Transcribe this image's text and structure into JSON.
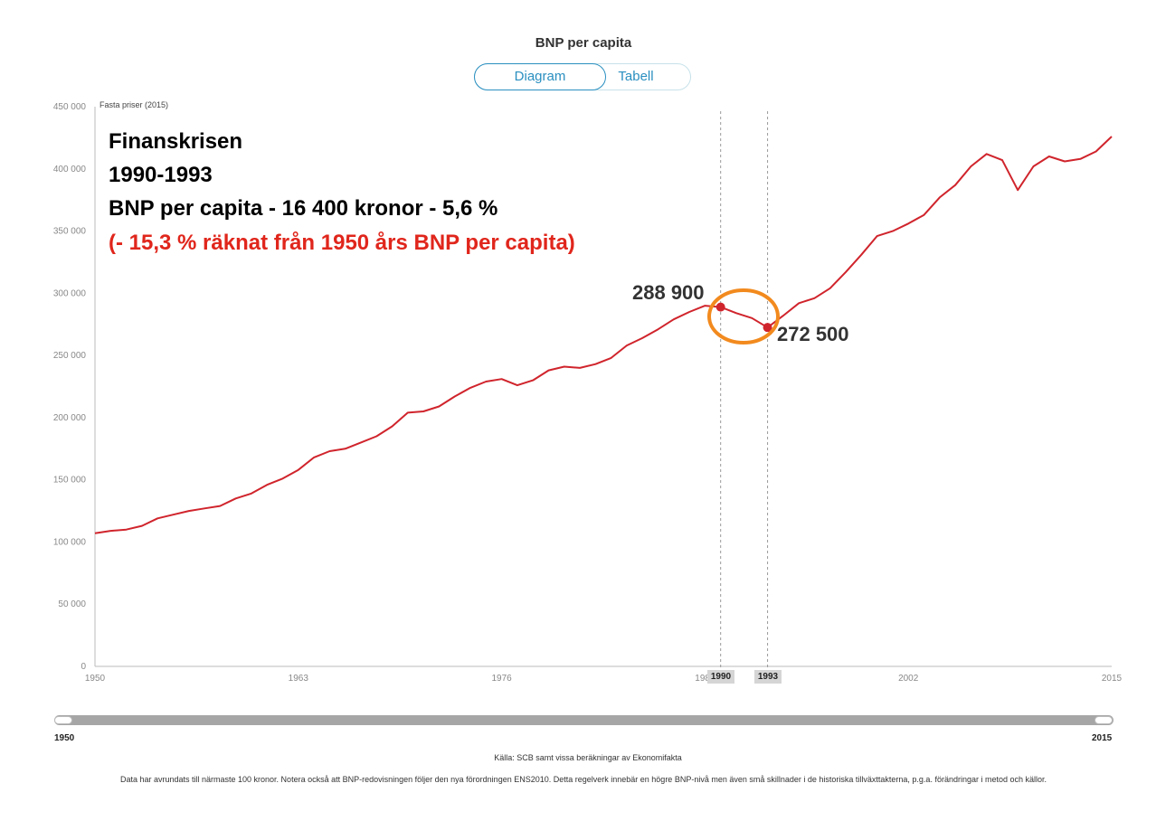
{
  "page": {
    "title": "BNP per capita",
    "tabs": [
      {
        "label": "Diagram",
        "active": true
      },
      {
        "label": "Tabell",
        "active": false
      }
    ],
    "source": "Källa: SCB samt vissa beräkningar av Ekonomifakta",
    "footnote": "Data har avrundats till närmaste 100 kronor. Notera också att BNP-redovisningen följer den nya förordningen ENS2010. Detta regelverk innebär en högre BNP-nivå men även små skillnader i de historiska tillväxttakterna, p.g.a. förändringar i metod och källor."
  },
  "annotation": {
    "line1": "Finanskrisen",
    "line2": "1990-1993",
    "line3": "BNP per capita - 16 400 kronor - 5,6 %",
    "line4": "(- 15,3 % räknat från 1950 års BNP per capita)",
    "value_1990": "288 900",
    "value_1993": "272 500"
  },
  "slider": {
    "start_label": "1950",
    "end_label": "2015"
  },
  "colors": {
    "line": "#d0242c",
    "tab_accent": "#2a8fc0",
    "highlight_circle": "#f28a1e"
  },
  "chart_data": {
    "type": "line",
    "title": "BNP per capita",
    "ylabel": "Fasta priser (2015)",
    "xlabel": "",
    "xlim": [
      1950,
      2015
    ],
    "ylim": [
      0,
      450000
    ],
    "x_ticks": [
      "1950",
      "1963",
      "1976",
      "1989",
      "2002",
      "2015"
    ],
    "y_ticks": [
      "0",
      "50 000",
      "100 000",
      "150 000",
      "200 000",
      "250 000",
      "300 000",
      "350 000",
      "400 000",
      "450 000"
    ],
    "y_tick_values": [
      0,
      50000,
      100000,
      150000,
      200000,
      250000,
      300000,
      350000,
      400000,
      450000
    ],
    "x_tick_values": [
      1950,
      1963,
      1976,
      1989,
      2002,
      2015
    ],
    "highlight_years": [
      1990,
      1993
    ],
    "highlight_labels": [
      "1990",
      "1993"
    ],
    "grid": false,
    "series": [
      {
        "x": [
          1950,
          1951,
          1952,
          1953,
          1954,
          1955,
          1956,
          1957,
          1958,
          1959,
          1960,
          1961,
          1962,
          1963,
          1964,
          1965,
          1966,
          1967,
          1968,
          1969,
          1970,
          1971,
          1972,
          1973,
          1974,
          1975,
          1976,
          1977,
          1978,
          1979,
          1980,
          1981,
          1982,
          1983,
          1984,
          1985,
          1986,
          1987,
          1988,
          1989,
          1990,
          1991,
          1992,
          1993,
          1994,
          1995,
          1996,
          1997,
          1998,
          1999,
          2000,
          2001,
          2002,
          2003,
          2004,
          2005,
          2006,
          2007,
          2008,
          2009,
          2010,
          2011,
          2012,
          2013,
          2014,
          2015
        ],
        "y": [
          107000,
          109000,
          110000,
          113000,
          119000,
          122000,
          125000,
          127000,
          129000,
          135000,
          139000,
          146000,
          151000,
          158000,
          168000,
          173000,
          175000,
          180000,
          185000,
          193000,
          204000,
          205000,
          209000,
          217000,
          224000,
          229000,
          231000,
          226000,
          230000,
          238000,
          241000,
          240000,
          243000,
          248000,
          258000,
          264000,
          271000,
          279000,
          285000,
          290000,
          288900,
          284000,
          280000,
          272500,
          282000,
          292000,
          296000,
          304000,
          317000,
          331000,
          346000,
          350000,
          356000,
          363000,
          377000,
          387000,
          402000,
          412000,
          407000,
          383000,
          402000,
          410000,
          406000,
          408000,
          414000,
          426000
        ]
      }
    ]
  }
}
